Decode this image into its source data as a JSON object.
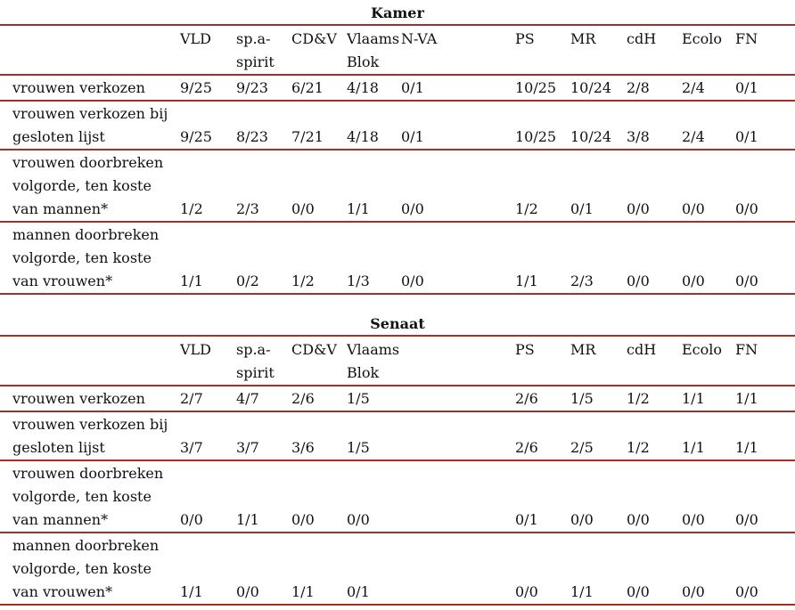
{
  "accent_rule_color": "#a32e2a",
  "text_color": "#111111",
  "tables": [
    {
      "title": "Kamer",
      "column_headers": [
        "",
        "VLD",
        "sp.a-\nspirit",
        "CD&V",
        "Vlaams\nBlok",
        "N-VA",
        "",
        "PS",
        "MR",
        "cdH",
        "Ecolo",
        "FN"
      ],
      "rows": [
        {
          "label": "vrouwen verkozen",
          "values": [
            "9/25",
            "9/23",
            "6/21",
            "4/18",
            "0/1",
            "",
            "10/25",
            "10/24",
            "2/8",
            "2/4",
            "0/1"
          ]
        },
        {
          "label": "vrouwen verkozen bij\ngesloten lijst",
          "values": [
            "9/25",
            "8/23",
            "7/21",
            "4/18",
            "0/1",
            "",
            "10/25",
            "10/24",
            "3/8",
            "2/4",
            "0/1"
          ]
        },
        {
          "label": "vrouwen doorbreken\nvolgorde, ten koste\nvan mannen*",
          "values": [
            "1/2",
            "2/3",
            "0/0",
            "1/1",
            "0/0",
            "",
            "1/2",
            "0/1",
            "0/0",
            "0/0",
            "0/0"
          ]
        },
        {
          "label": "mannen doorbreken\nvolgorde, ten koste\nvan vrouwen*",
          "values": [
            "1/1",
            "0/2",
            "1/2",
            "1/3",
            "0/0",
            "",
            "1/1",
            "2/3",
            "0/0",
            "0/0",
            "0/0"
          ]
        }
      ]
    },
    {
      "title": "Senaat",
      "column_headers": [
        "",
        "VLD",
        "sp.a-\nspirit",
        "CD&V",
        "Vlaams\nBlok",
        "",
        "",
        "PS",
        "MR",
        "cdH",
        "Ecolo",
        "FN"
      ],
      "rows": [
        {
          "label": "vrouwen verkozen",
          "values": [
            "2/7",
            "4/7",
            "2/6",
            "1/5",
            "",
            "",
            "2/6",
            "1/5",
            "1/2",
            "1/1",
            "1/1"
          ]
        },
        {
          "label": "vrouwen verkozen bij\ngesloten lijst",
          "values": [
            "3/7",
            "3/7",
            "3/6",
            "1/5",
            "",
            "",
            "2/6",
            "2/5",
            "1/2",
            "1/1",
            "1/1"
          ]
        },
        {
          "label": "vrouwen doorbreken\nvolgorde, ten koste\nvan mannen*",
          "values": [
            "0/0",
            "1/1",
            "0/0",
            "0/0",
            "",
            "",
            "0/1",
            "0/0",
            "0/0",
            "0/0",
            "0/0"
          ]
        },
        {
          "label": "mannen doorbreken\nvolgorde, ten koste\nvan vrouwen*",
          "values": [
            "1/1",
            "0/0",
            "1/1",
            "0/1",
            "",
            "",
            "0/0",
            "1/1",
            "0/0",
            "0/0",
            "0/0"
          ]
        }
      ]
    }
  ]
}
